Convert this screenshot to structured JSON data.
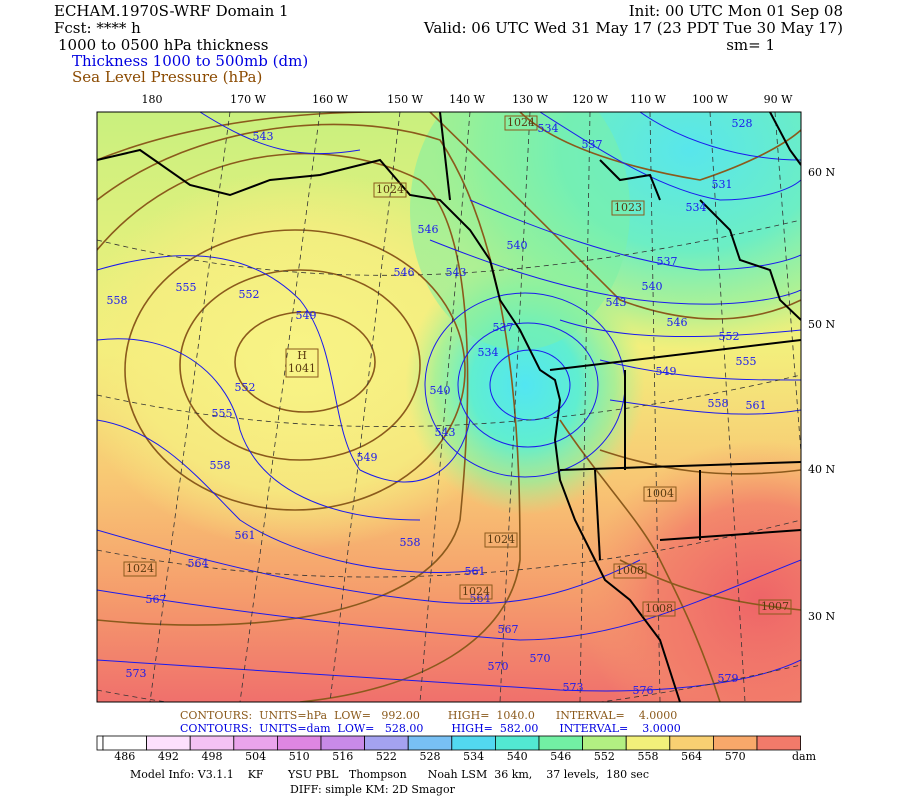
{
  "header": {
    "title": "ECHAM.1970S-WRF Domain 1",
    "forecast": "Fcst: **** h",
    "field": "1000 to 0500 hPa thickness",
    "legend_thickness": "Thickness 1000 to 500mb (dm)",
    "legend_pressure": "Sea Level Pressure (hPa)",
    "init": "Init: 00 UTC Mon 01 Sep 08",
    "valid": "Valid: 06 UTC Wed 31 May 17 (23 PDT Tue 30 May 17)",
    "smoothing": "sm= 1"
  },
  "map": {
    "longitude_labels": [
      "180",
      "170 W",
      "160 W",
      "150 W",
      "140 W",
      "130 W",
      "120 W",
      "110 W",
      "100 W",
      "90 W"
    ],
    "latitude_labels": [
      "60 N",
      "50 N",
      "40 N",
      "30 N"
    ],
    "thickness_labels": [
      543,
      534,
      537,
      528,
      531,
      534,
      540,
      546,
      546,
      543,
      537,
      540,
      555,
      552,
      558,
      549,
      543,
      546,
      537,
      534,
      552,
      555,
      549,
      552,
      540,
      558,
      561,
      555,
      543,
      549,
      558,
      561,
      558,
      564,
      561,
      564,
      567,
      567,
      570,
      570,
      573,
      573,
      576,
      579
    ],
    "pressure_labels": [
      1024,
      1024,
      1023,
      1024,
      1004,
      1008,
      1024,
      1024,
      1008,
      1007
    ],
    "high": {
      "symbol": "H",
      "value": 1041
    }
  },
  "footer": {
    "contours_pressure": "CONTOURS:  UNITS=hPa  LOW=   992.00        HIGH=  1040.0      INTERVAL=    4.0000",
    "contours_thickness": "CONTOURS:  UNITS=dam  LOW=   528.00        HIGH=  582.00      INTERVAL=    3.0000",
    "colorbar": {
      "labels": [
        486,
        492,
        498,
        504,
        510,
        516,
        522,
        528,
        534,
        540,
        546,
        552,
        558,
        564,
        570
      ],
      "unit": "dam"
    },
    "model_info": "Model Info: V3.1.1    KF       YSU PBL   Thompson      Noah LSM  36 km,    37 levels,  180 sec",
    "diff": "DIFF: simple KM: 2D Smagor"
  }
}
